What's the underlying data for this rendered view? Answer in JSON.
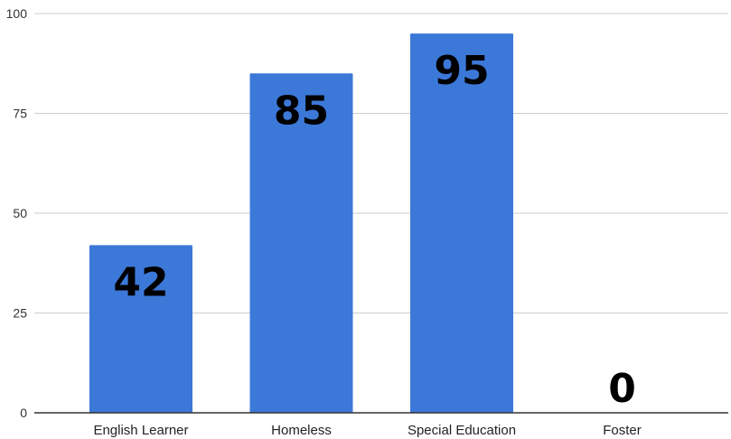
{
  "chart_data": {
    "type": "bar",
    "title": "",
    "xlabel": "",
    "ylabel": "",
    "categories": [
      "English Learner",
      "Homeless",
      "Special Education",
      "Foster"
    ],
    "values": [
      42,
      85,
      95,
      0
    ],
    "data_labels": [
      "42",
      "85",
      "95",
      "0"
    ],
    "ylim": [
      0,
      100
    ],
    "yticks": [
      "0",
      "25",
      "50",
      "75",
      "100"
    ],
    "grid": true,
    "legend": "none",
    "bar_color": "#3c78d8",
    "grid_color": "#cccccc",
    "axis_color": "#333333"
  }
}
